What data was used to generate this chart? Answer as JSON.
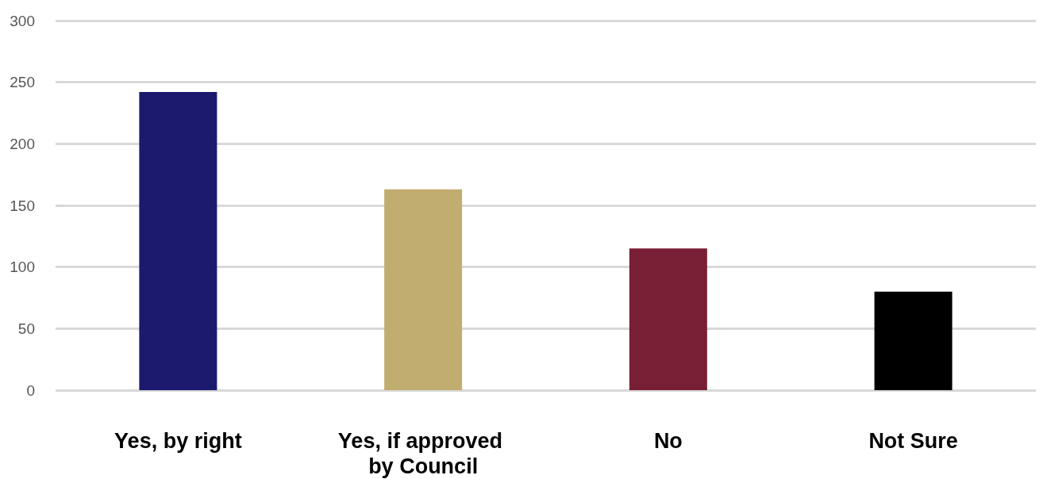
{
  "chart_data": {
    "type": "bar",
    "categories": [
      "Yes, by right",
      "Yes, if approved by Council",
      "No",
      "Not Sure"
    ],
    "values": [
      242,
      163,
      115,
      80
    ],
    "colors": [
      "#1b1a6e",
      "#c1ad6f",
      "#781f36",
      "#000000"
    ],
    "ylim": [
      0,
      300
    ],
    "yticks": [
      0,
      50,
      100,
      150,
      200,
      250,
      300
    ],
    "grid": "y"
  }
}
